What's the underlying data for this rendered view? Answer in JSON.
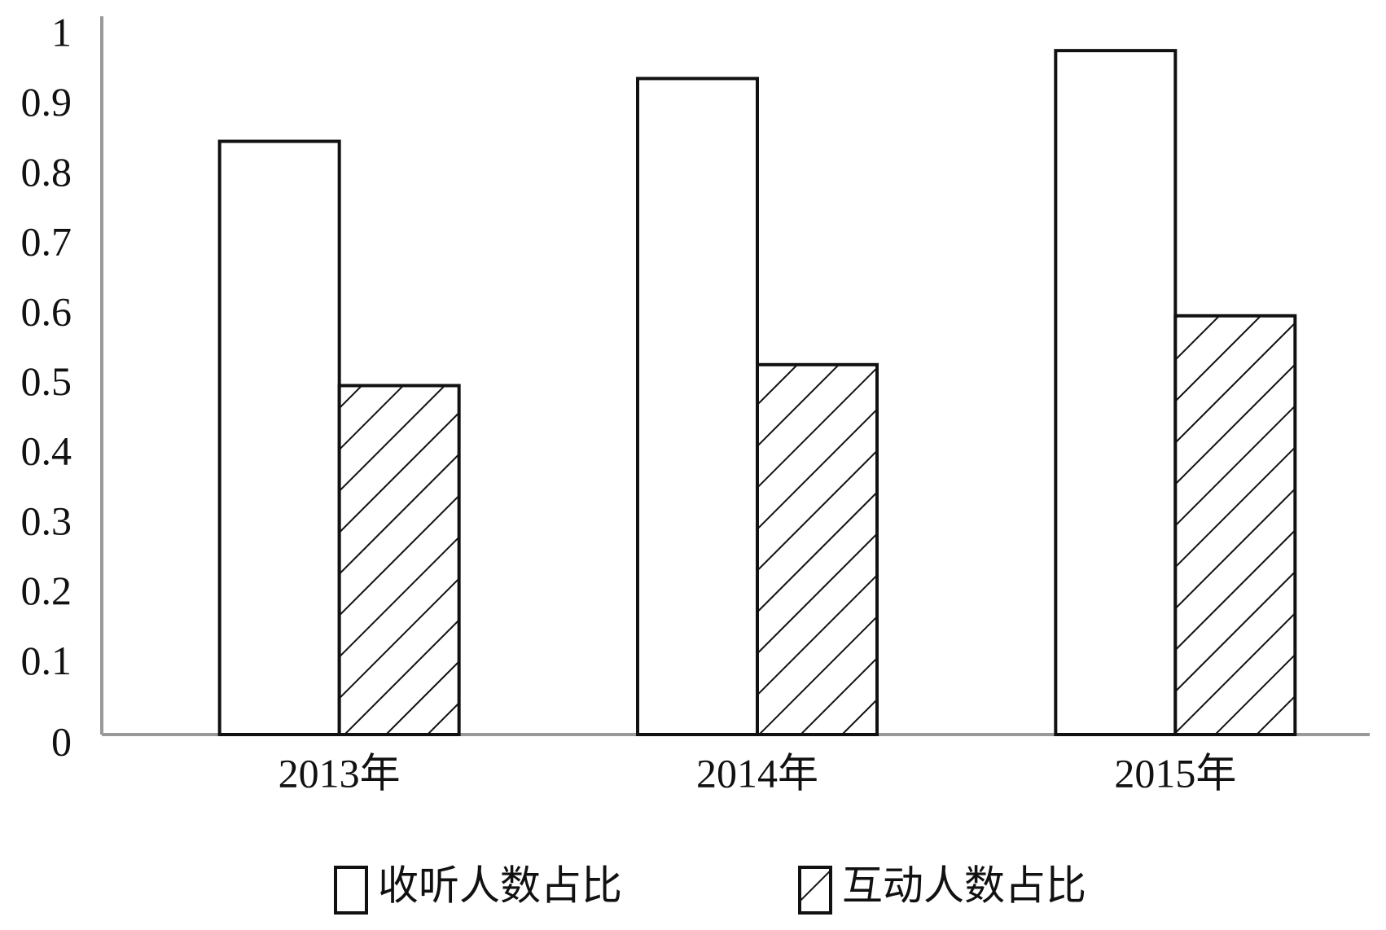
{
  "chart_data": {
    "type": "bar",
    "categories": [
      "2013年",
      "2014年",
      "2015年"
    ],
    "series": [
      {
        "name": "收听人数占比",
        "color": "#ffffff",
        "values": [
          0.85,
          0.94,
          0.98
        ]
      },
      {
        "name": "互动人数占比",
        "color": "#ffffff",
        "hatch": true,
        "values": [
          0.5,
          0.53,
          0.6
        ]
      }
    ],
    "ylim": [
      0,
      1
    ],
    "yticks": [
      0,
      0.1,
      0.2,
      0.3,
      0.4,
      0.5,
      0.6,
      0.7,
      0.8,
      0.9,
      1
    ],
    "grid": false,
    "legend": "bottom"
  }
}
